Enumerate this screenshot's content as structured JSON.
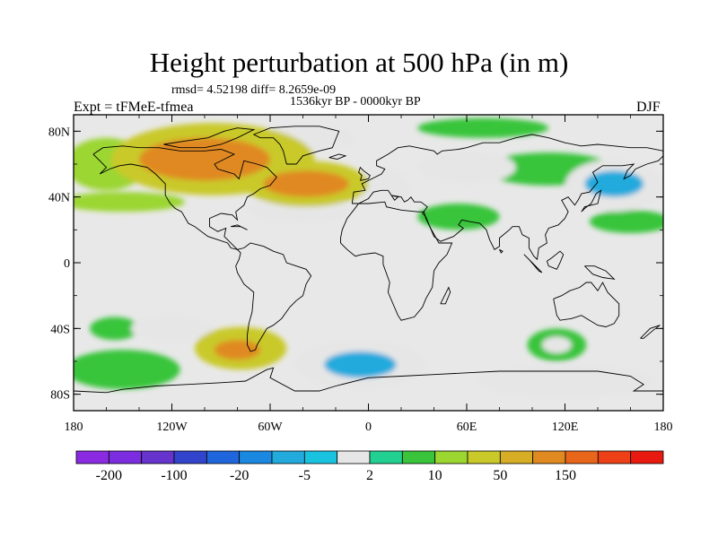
{
  "title": "Height perturbation at 500 hPa (in m)",
  "stats": "rmsd= 4.52198 diff= 8.2659e-09",
  "period": "1536kyr BP - 0000kyr BP",
  "experiment": "Expt = tFMeE-tfmea",
  "season": "DJF",
  "map": {
    "projection": "cylindrical equidistant",
    "lon_range": [
      -180,
      180
    ],
    "lat_range": [
      -90,
      90
    ],
    "background_color": "#e8e8e8",
    "lat_ticks": [
      {
        "value": 80,
        "label": "80N"
      },
      {
        "value": 40,
        "label": "40N"
      },
      {
        "value": 0,
        "label": "0"
      },
      {
        "value": -40,
        "label": "40S"
      },
      {
        "value": -80,
        "label": "80S"
      }
    ],
    "lon_ticks": [
      {
        "value": -180,
        "label": "180"
      },
      {
        "value": -120,
        "label": "120W"
      },
      {
        "value": -60,
        "label": "60W"
      },
      {
        "value": 0,
        "label": "0"
      },
      {
        "value": 60,
        "label": "60E"
      },
      {
        "value": 120,
        "label": "120E"
      },
      {
        "value": 180,
        "label": "180"
      }
    ]
  },
  "colorbar": {
    "colors": [
      "#8a2be2",
      "#7b2ddf",
      "#6633cc",
      "#3344cc",
      "#1f66dd",
      "#1a88e0",
      "#22aadd",
      "#19c3e0",
      "#e6e6e6",
      "#22d191",
      "#39c43b",
      "#9bd631",
      "#c9c92a",
      "#d6ad24",
      "#e08920",
      "#e8661a",
      "#ee4016",
      "#e81a10"
    ],
    "labels": [
      {
        "text": "-200",
        "at_edge": 1
      },
      {
        "text": "-100",
        "at_edge": 3
      },
      {
        "text": "-20",
        "at_edge": 5
      },
      {
        "text": "-5",
        "at_edge": 7
      },
      {
        "text": "2",
        "at_edge": 9
      },
      {
        "text": "10",
        "at_edge": 11
      },
      {
        "text": "50",
        "at_edge": 13
      },
      {
        "text": "150",
        "at_edge": 15
      }
    ]
  },
  "anomalies": [
    {
      "region": "north-america-arctic",
      "lon": -95,
      "lat": 63,
      "rx": 62,
      "ry": 22,
      "level": 10
    },
    {
      "region": "north-america-arctic-core",
      "lon": -100,
      "lat": 63,
      "rx": 40,
      "ry": 13,
      "level": 50
    },
    {
      "region": "north-atlantic",
      "lon": -38,
      "lat": 48,
      "rx": 38,
      "ry": 14,
      "level": 10
    },
    {
      "region": "north-atlantic-core",
      "lon": -38,
      "lat": 48,
      "rx": 26,
      "ry": 8,
      "level": 50
    },
    {
      "region": "north-pacific",
      "lon": -160,
      "lat": 60,
      "rx": 25,
      "ry": 16,
      "level": 5
    },
    {
      "region": "pacific-band",
      "lon": -150,
      "lat": 37,
      "rx": 38,
      "ry": 6,
      "level": 5
    },
    {
      "region": "greenland",
      "lon": -40,
      "lat": 76,
      "rx": 32,
      "ry": 8,
      "level": -5
    },
    {
      "region": "mid-atlantic",
      "lon": -42,
      "lat": 32,
      "rx": 32,
      "ry": 8,
      "level": -5
    },
    {
      "region": "mediterranean",
      "lon": 10,
      "lat": 45,
      "rx": 16,
      "ry": 12,
      "level": -5
    },
    {
      "region": "west-siberia",
      "lon": 60,
      "lat": 58,
      "rx": 30,
      "ry": 10,
      "level": -5
    },
    {
      "region": "arctic-asia",
      "lon": 70,
      "lat": 82,
      "rx": 40,
      "ry": 6,
      "level": 2
    },
    {
      "region": "east-asia",
      "lon": 110,
      "lat": 57,
      "rx": 40,
      "ry": 10,
      "level": 2
    },
    {
      "region": "middle-east",
      "lon": 55,
      "lat": 28,
      "rx": 25,
      "ry": 8,
      "level": 2
    },
    {
      "region": "northwest-pacific",
      "lon": 150,
      "lat": 47,
      "rx": 30,
      "ry": 16,
      "level": -5
    },
    {
      "region": "northwest-pacific-core",
      "lon": 150,
      "lat": 48,
      "rx": 18,
      "ry": 8,
      "level": -20
    },
    {
      "region": "north-pacific-east",
      "lon": 160,
      "lat": 25,
      "rx": 25,
      "ry": 7,
      "level": 2
    },
    {
      "region": "south-pacific",
      "lon": -155,
      "lat": -40,
      "rx": 15,
      "ry": 7,
      "level": 2
    },
    {
      "region": "south-america",
      "lon": -78,
      "lat": -52,
      "rx": 28,
      "ry": 13,
      "level": 10
    },
    {
      "region": "south-america-core",
      "lon": -80,
      "lat": -53,
      "rx": 14,
      "ry": 6,
      "level": 50
    },
    {
      "region": "south-pacific-west",
      "lon": -150,
      "lat": -65,
      "rx": 35,
      "ry": 12,
      "level": 2
    },
    {
      "region": "south-pacific-mid",
      "lon": -120,
      "lat": -40,
      "rx": 25,
      "ry": 8,
      "level": -5
    },
    {
      "region": "south-atlantic",
      "lon": -5,
      "lat": -62,
      "rx": 40,
      "ry": 15,
      "level": -5
    },
    {
      "region": "south-atlantic-core",
      "lon": -5,
      "lat": -62,
      "rx": 22,
      "ry": 8,
      "level": -20
    },
    {
      "region": "south-indian",
      "lon": 115,
      "lat": -50,
      "rx": 18,
      "ry": 10,
      "level": 2
    },
    {
      "region": "south-indian-core",
      "lon": 115,
      "lat": -50,
      "rx": 9,
      "ry": 5,
      "level": -5
    },
    {
      "region": "southern-ocean-east",
      "lon": 120,
      "lat": -72,
      "rx": 55,
      "ry": 10,
      "level": -5
    }
  ],
  "coastline_color": "#000000"
}
